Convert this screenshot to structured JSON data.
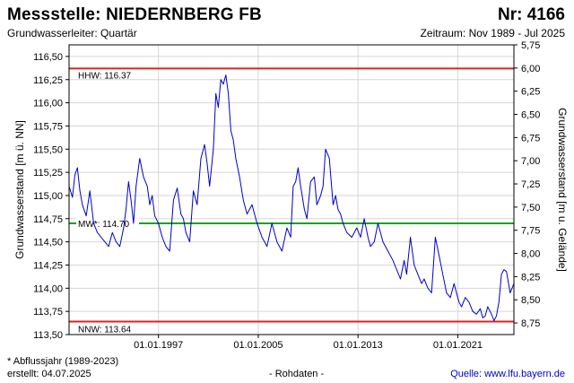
{
  "header": {
    "station": "Messstelle: NIEDERNBERG FB",
    "number": "Nr: 4166",
    "aquifer": "Grundwasserleiter: Quartär",
    "period": "Zeitraum: Nov 1989 - Jul 2025"
  },
  "footer": {
    "footnote": "* Abflussjahr (1989-2023)",
    "created": "erstellt:  04.07.2025",
    "rawdata": "- Rohdaten -",
    "source": "Quelle: www.lfu.bayern.de"
  },
  "chart_data": {
    "type": "line",
    "ylabel_left": "Grundwasserstand [m ü. NN]",
    "ylabel_right": "Grundwasserstand [m u. Gelände]",
    "xlim": [
      1989.83,
      2025.5
    ],
    "ylim_left": [
      113.5,
      116.625
    ],
    "ylim_right": [
      8.875,
      5.75
    ],
    "xticks": [
      1997.0,
      2005.0,
      2013.0,
      2021.0
    ],
    "xtick_labels": [
      "01.01.1997",
      "01.01.2005",
      "01.01.2013",
      "01.01.2021"
    ],
    "yticks_left": [
      113.5,
      113.75,
      114.0,
      114.25,
      114.5,
      114.75,
      115.0,
      115.25,
      115.5,
      115.75,
      116.0,
      116.25,
      116.5
    ],
    "ytick_labels_left": [
      "113,50",
      "113,75",
      "114,00",
      "114,25",
      "114,50",
      "114,75",
      "115,00",
      "115,25",
      "115,50",
      "115,75",
      "116,00",
      "116,25",
      "116,50"
    ],
    "yticks_right": [
      5.75,
      6.0,
      6.25,
      6.5,
      6.75,
      7.0,
      7.25,
      7.5,
      7.75,
      8.0,
      8.25,
      8.5,
      8.75
    ],
    "ytick_labels_right": [
      "5,75",
      "6,00",
      "6,25",
      "6,50",
      "6,75",
      "7,00",
      "7,25",
      "7,50",
      "7,75",
      "8,00",
      "8,25",
      "8,50",
      "8,75"
    ],
    "grid": true,
    "reference_lines": [
      {
        "label": "HHW: 116.37",
        "value": 116.37,
        "color": "#e02020"
      },
      {
        "label": "MW*: 114.70",
        "value": 114.7,
        "color": "#20a020"
      },
      {
        "label": "NNW: 113.64",
        "value": 113.64,
        "color": "#e02020"
      }
    ],
    "series": [
      {
        "color": "#0000cc",
        "x": [
          1989.83,
          1990.1,
          1990.3,
          1990.5,
          1990.7,
          1990.9,
          1991.2,
          1991.5,
          1991.8,
          1992.1,
          1992.4,
          1992.7,
          1993.0,
          1993.3,
          1993.6,
          1993.9,
          1994.2,
          1994.4,
          1994.6,
          1994.8,
          1995.0,
          1995.2,
          1995.5,
          1995.8,
          1996.1,
          1996.3,
          1996.5,
          1996.7,
          1997.0,
          1997.3,
          1997.6,
          1997.9,
          1998.2,
          1998.5,
          1998.8,
          1999.0,
          1999.2,
          1999.5,
          1999.8,
          2000.1,
          2000.4,
          2000.7,
          2000.9,
          2001.1,
          2001.4,
          2001.6,
          2001.8,
          2002.0,
          2002.2,
          2002.4,
          2002.6,
          2002.8,
          2003.0,
          2003.2,
          2003.5,
          2003.8,
          2004.1,
          2004.5,
          2004.9,
          2005.3,
          2005.7,
          2006.1,
          2006.5,
          2006.9,
          2007.3,
          2007.6,
          2007.8,
          2008.0,
          2008.2,
          2008.4,
          2008.7,
          2008.9,
          2009.2,
          2009.5,
          2009.7,
          2010.0,
          2010.2,
          2010.4,
          2010.7,
          2011.0,
          2011.2,
          2011.4,
          2011.6,
          2011.8,
          2012.1,
          2012.5,
          2012.9,
          2013.2,
          2013.5,
          2013.8,
          2014.0,
          2014.3,
          2014.6,
          2015.0,
          2015.4,
          2015.8,
          2016.1,
          2016.4,
          2016.7,
          2016.9,
          2017.2,
          2017.5,
          2017.8,
          2018.1,
          2018.3,
          2018.6,
          2018.9,
          2019.2,
          2019.5,
          2019.8,
          2020.1,
          2020.4,
          2020.7,
          2020.9,
          2021.1,
          2021.3,
          2021.6,
          2021.9,
          2022.2,
          2022.5,
          2022.8,
          2023.0,
          2023.2,
          2023.4,
          2023.7,
          2023.9,
          2024.1,
          2024.3,
          2024.5,
          2024.7,
          2024.9,
          2025.2,
          2025.5
        ],
        "y": [
          115.1,
          114.98,
          115.22,
          115.3,
          115.05,
          114.9,
          114.78,
          115.05,
          114.7,
          114.6,
          114.55,
          114.5,
          114.45,
          114.6,
          114.5,
          114.45,
          114.65,
          114.85,
          115.15,
          114.95,
          114.7,
          115.1,
          115.4,
          115.2,
          115.1,
          114.9,
          115.0,
          114.78,
          114.7,
          114.55,
          114.45,
          114.4,
          114.95,
          115.08,
          114.8,
          114.75,
          114.6,
          114.5,
          115.05,
          114.9,
          115.4,
          115.55,
          115.35,
          115.1,
          115.5,
          116.1,
          115.95,
          116.25,
          116.2,
          116.3,
          116.1,
          115.7,
          115.6,
          115.4,
          115.2,
          114.95,
          114.8,
          114.9,
          114.7,
          114.55,
          114.45,
          114.7,
          114.5,
          114.4,
          114.65,
          114.55,
          115.1,
          115.15,
          115.3,
          115.1,
          114.85,
          114.75,
          115.15,
          115.2,
          114.9,
          115.0,
          115.1,
          115.5,
          115.4,
          114.9,
          115.0,
          114.85,
          114.8,
          114.7,
          114.6,
          114.55,
          114.65,
          114.55,
          114.75,
          114.55,
          114.45,
          114.5,
          114.7,
          114.5,
          114.4,
          114.3,
          114.2,
          114.1,
          114.3,
          114.15,
          114.55,
          114.25,
          114.15,
          114.05,
          114.1,
          114.0,
          113.95,
          114.55,
          114.35,
          114.15,
          113.95,
          113.9,
          114.05,
          113.95,
          113.85,
          113.8,
          113.9,
          113.85,
          113.75,
          113.72,
          113.78,
          113.68,
          113.7,
          113.8,
          113.72,
          113.65,
          113.7,
          113.85,
          114.15,
          114.2,
          114.18,
          113.95,
          114.05
        ]
      }
    ]
  }
}
